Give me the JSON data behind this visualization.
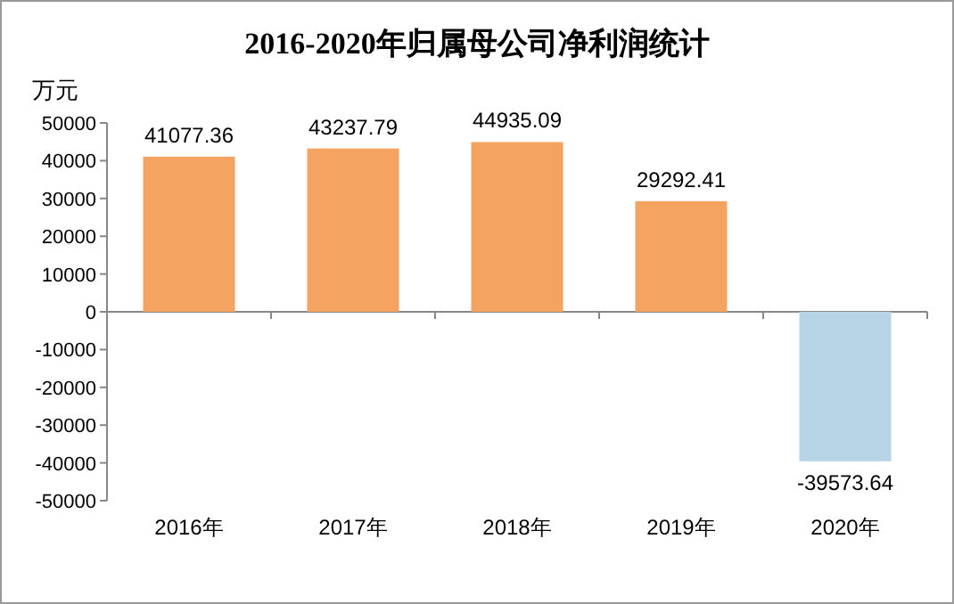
{
  "chart_data": {
    "type": "bar",
    "title": "2016-2020年归属母公司净利润统计",
    "ylabel": "万元",
    "categories": [
      "2016年",
      "2017年",
      "2018年",
      "2019年",
      "2020年"
    ],
    "values": [
      41077.36,
      43237.79,
      44935.09,
      29292.41,
      -39573.64
    ],
    "colors": [
      "#f4a460",
      "#f4a460",
      "#f4a460",
      "#f4a460",
      "#b7d3e6"
    ],
    "ylim": [
      -50000,
      50000
    ],
    "yticks": [
      -50000,
      -40000,
      -30000,
      -20000,
      -10000,
      0,
      10000,
      20000,
      30000,
      40000,
      50000
    ],
    "data_labels": true
  }
}
